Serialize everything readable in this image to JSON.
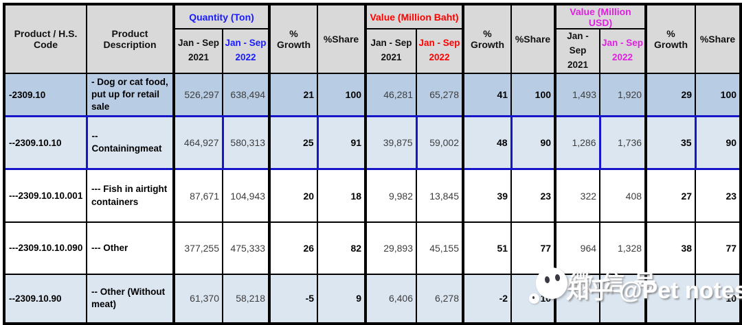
{
  "colors": {
    "qty": "#1a1aff",
    "baht": "#ff0000",
    "usd": "#e020e0",
    "header_bg": "#d9d9d9",
    "row_strong": "#b8cce4",
    "row_light": "#dce6f1",
    "row_white": "#ffffff",
    "highlight_border": "#1616c8",
    "grid": "#000000",
    "number_text": "#3d3d3d"
  },
  "columns": {
    "product_code": "Product / H.S. Code",
    "product_description": "Product Description",
    "growth": "% Growth",
    "share": "%Share",
    "period_2021": "Jan - Sep\n2021",
    "period_2022": "Jan - Sep\n2022",
    "groups": [
      {
        "id": "qty",
        "label": "Quantity (Ton)"
      },
      {
        "id": "baht",
        "label": "Value (Million Baht)"
      },
      {
        "id": "usd",
        "label": "Value (Million USD)"
      }
    ]
  },
  "rows": [
    {
      "code": "-2309.10",
      "desc": "- Dog or cat food, put up for retail sale",
      "qty_2021": "526,297",
      "qty_2022": "638,494",
      "qty_growth": "21",
      "qty_share": "100",
      "baht_2021": "46,281",
      "baht_2022": "65,278",
      "baht_growth": "41",
      "baht_share": "100",
      "usd_2021": "1,493",
      "usd_2022": "1,920",
      "usd_growth": "29",
      "usd_share": "100",
      "bg": "#b8cce4",
      "highlight": false
    },
    {
      "code": "--2309.10.10",
      "desc": "-- Containingmeat",
      "qty_2021": "464,927",
      "qty_2022": "580,313",
      "qty_growth": "25",
      "qty_share": "91",
      "baht_2021": "39,875",
      "baht_2022": "59,002",
      "baht_growth": "48",
      "baht_share": "90",
      "usd_2021": "1,286",
      "usd_2022": "1,736",
      "usd_growth": "35",
      "usd_share": "90",
      "bg": "#dce6f1",
      "highlight": true
    },
    {
      "code": "---2309.10.10.001",
      "desc": "--- Fish in airtight containers",
      "qty_2021": "87,671",
      "qty_2022": "104,943",
      "qty_growth": "20",
      "qty_share": "18",
      "baht_2021": "9,982",
      "baht_2022": "13,845",
      "baht_growth": "39",
      "baht_share": "23",
      "usd_2021": "322",
      "usd_2022": "408",
      "usd_growth": "27",
      "usd_share": "23",
      "bg": "#ffffff",
      "highlight": false
    },
    {
      "code": "---2309.10.10.090",
      "desc": "--- Other",
      "qty_2021": "377,255",
      "qty_2022": "475,333",
      "qty_growth": "26",
      "qty_share": "82",
      "baht_2021": "29,893",
      "baht_2022": "45,155",
      "baht_growth": "51",
      "baht_share": "77",
      "usd_2021": "964",
      "usd_2022": "1,328",
      "usd_growth": "38",
      "usd_share": "77",
      "bg": "#ffffff",
      "highlight": false
    },
    {
      "code": "--2309.10.90",
      "desc": "-- Other (Without meat)",
      "qty_2021": "61,370",
      "qty_2022": "58,218",
      "qty_growth": "-5",
      "qty_share": "9",
      "baht_2021": "6,406",
      "baht_2022": "6,278",
      "baht_growth": "-2",
      "baht_share": "10",
      "usd_2021": "",
      "usd_2022": "",
      "usd_growth": "",
      "usd_share": "10",
      "bg": "#dce6f1",
      "highlight": false
    }
  ],
  "watermark": {
    "text": "知乎 @Pet notes",
    "overlay": "微信号"
  },
  "chart_data": {
    "type": "table",
    "columns": [
      "Product / H.S. Code",
      "Product Description",
      "Quantity (Ton) Jan - Sep 2021",
      "Quantity (Ton) Jan - Sep 2022",
      "Quantity % Growth",
      "Quantity %Share",
      "Value (Million Baht) Jan - Sep 2021",
      "Value (Million Baht) Jan - Sep 2022",
      "Value (Baht) % Growth",
      "Value (Baht) %Share",
      "Value (Million USD) Jan - Sep 2021",
      "Value (Million USD) Jan - Sep 2022",
      "Value (USD) % Growth",
      "Value (USD) %Share"
    ],
    "rows": [
      [
        "-2309.10",
        "- Dog or cat food, put up for retail sale",
        526297,
        638494,
        21,
        100,
        46281,
        65278,
        41,
        100,
        1493,
        1920,
        29,
        100
      ],
      [
        "--2309.10.10",
        "-- Containingmeat",
        464927,
        580313,
        25,
        91,
        39875,
        59002,
        48,
        90,
        1286,
        1736,
        35,
        90
      ],
      [
        "---2309.10.10.001",
        "--- Fish in airtight containers",
        87671,
        104943,
        20,
        18,
        9982,
        13845,
        39,
        23,
        322,
        408,
        27,
        23
      ],
      [
        "---2309.10.10.090",
        "--- Other",
        377255,
        475333,
        26,
        82,
        29893,
        45155,
        51,
        77,
        964,
        1328,
        38,
        77
      ],
      [
        "--2309.10.90",
        "-- Other (Without meat)",
        61370,
        58218,
        -5,
        9,
        6406,
        6278,
        -2,
        10,
        null,
        null,
        null,
        10
      ]
    ],
    "notes": "Last row USD values are obscured by a watermark in the source image"
  }
}
